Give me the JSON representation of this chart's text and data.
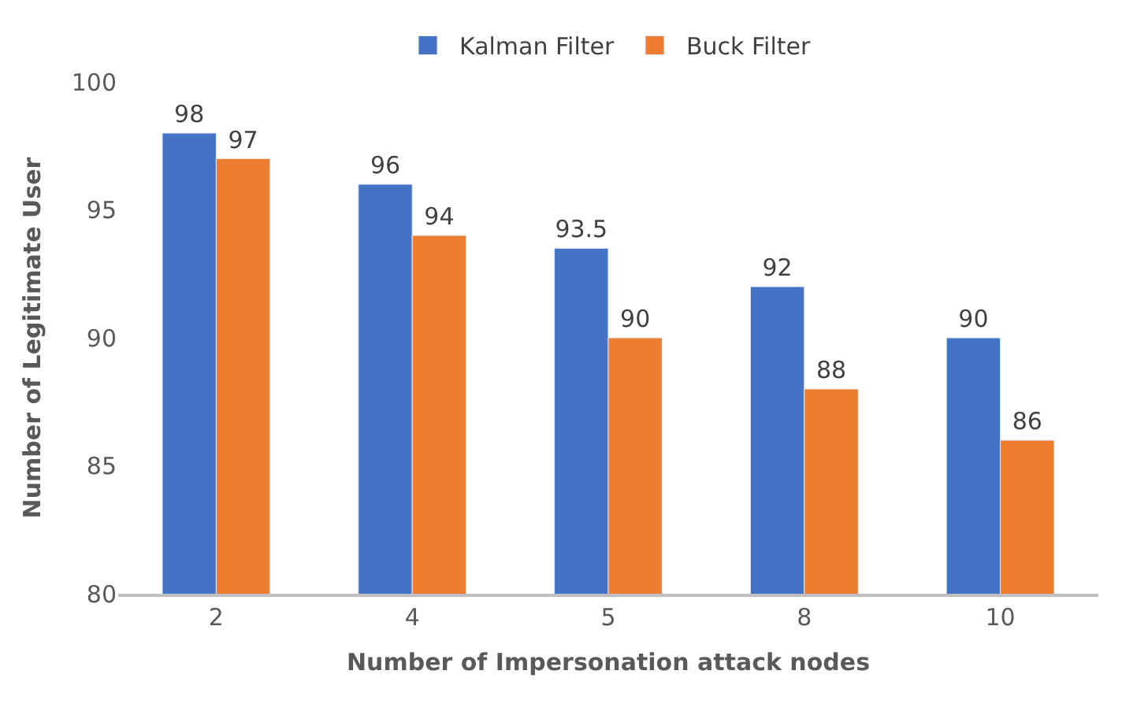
{
  "chart_data": {
    "type": "bar",
    "xlabel": "Number of Impersonation attack nodes",
    "ylabel": "Number of Legitimate User",
    "categories": [
      "2",
      "4",
      "5",
      "8",
      "10"
    ],
    "series": [
      {
        "name": "Kalman Filter",
        "color": "#4472c4",
        "values": [
          98,
          96,
          93.5,
          92,
          90
        ]
      },
      {
        "name": "Buck Filter",
        "color": "#ed7d31",
        "values": [
          97,
          94,
          90,
          88,
          86
        ]
      }
    ],
    "ylim": [
      80,
      100
    ],
    "yticks": [
      80,
      85,
      90,
      95,
      100
    ],
    "grid": false,
    "legend": "top",
    "data_labels": true
  }
}
